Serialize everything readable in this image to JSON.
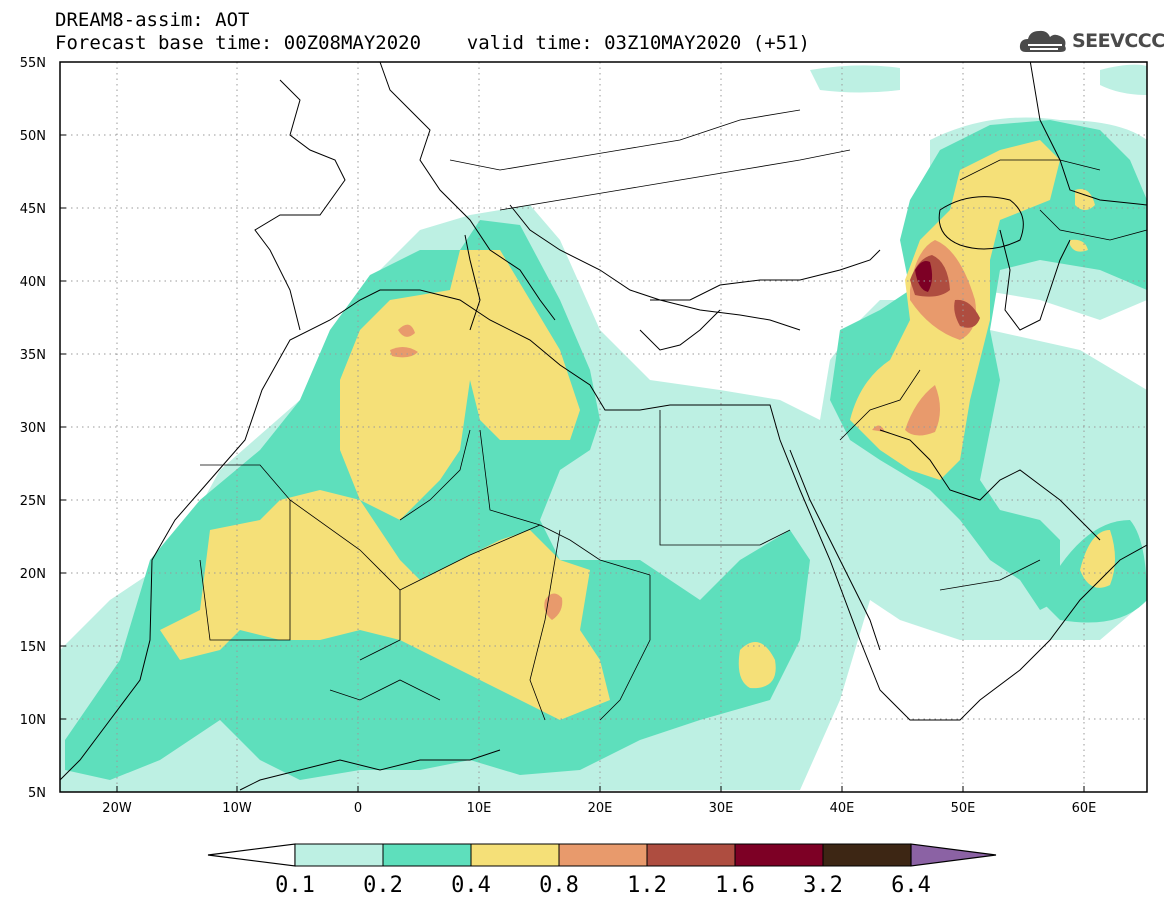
{
  "header": {
    "line1": "DREAM8-assim: AOT",
    "line2": "Forecast base time: 00Z08MAY2020    valid time: 03Z10MAY2020 (+51)"
  },
  "logo": {
    "text": "SEEVCCC",
    "icon": "cloud-icon",
    "color": "#4a4a4a"
  },
  "map": {
    "lat_labels": [
      "55N",
      "50N",
      "45N",
      "40N",
      "35N",
      "30N",
      "25N",
      "20N",
      "15N",
      "10N",
      "5N"
    ],
    "lon_labels": [
      "20W",
      "10W",
      "0",
      "10E",
      "20E",
      "30E",
      "40E",
      "50E",
      "60E"
    ],
    "extent": {
      "lon_min": -25,
      "lon_max": 65,
      "lat_min": 5,
      "lat_max": 55
    }
  },
  "colorbar": {
    "labels": [
      "0.1",
      "0.2",
      "0.4",
      "0.8",
      "1.2",
      "1.6",
      "3.2",
      "6.4"
    ],
    "colors": [
      "#ffffff",
      "#bdf0e3",
      "#5edfbc",
      "#f5e078",
      "#e89a6c",
      "#ae4d40",
      "#7d0025",
      "#3d2614",
      "#8b62a4"
    ]
  },
  "palette": {
    "level1": "#bdf0e3",
    "level2": "#5edfbc",
    "level3": "#f5e078",
    "level4": "#e89a6c",
    "level5": "#ae4d40",
    "level6": "#7d0025"
  }
}
